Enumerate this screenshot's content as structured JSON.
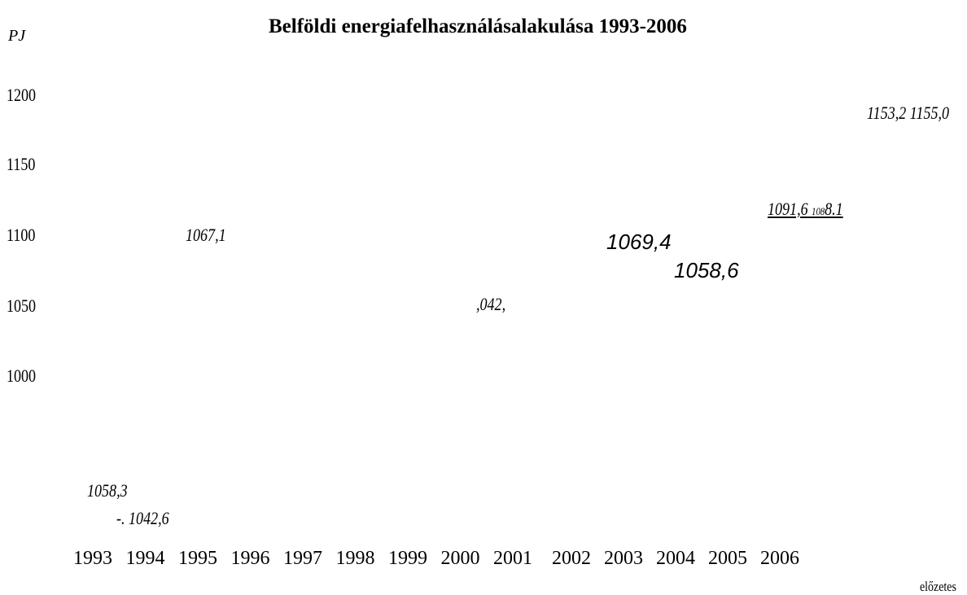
{
  "header": {
    "unit": "PJ",
    "title": "Belföldi energiafelhasználásalakulása 1993-2006"
  },
  "y_labels": [
    "1200",
    "1150",
    "1100",
    "1050",
    "1000"
  ],
  "labels": {
    "a": "1153,2 1155,0",
    "b1": "1091,6",
    "b2": "108",
    "b3": "8.1",
    "c": "1067,1",
    "d": "1069,4",
    "e": "1058,6",
    "f": ",042,",
    "g": "1058,3",
    "h": "-. 1042,6"
  },
  "years": [
    "1993",
    "1994",
    "1995",
    "1996",
    "1997",
    "1998",
    "1999",
    "2000",
    "2001",
    "2002",
    "2003",
    "2004",
    "2005",
    "2006"
  ],
  "footnote": "előzetes"
}
